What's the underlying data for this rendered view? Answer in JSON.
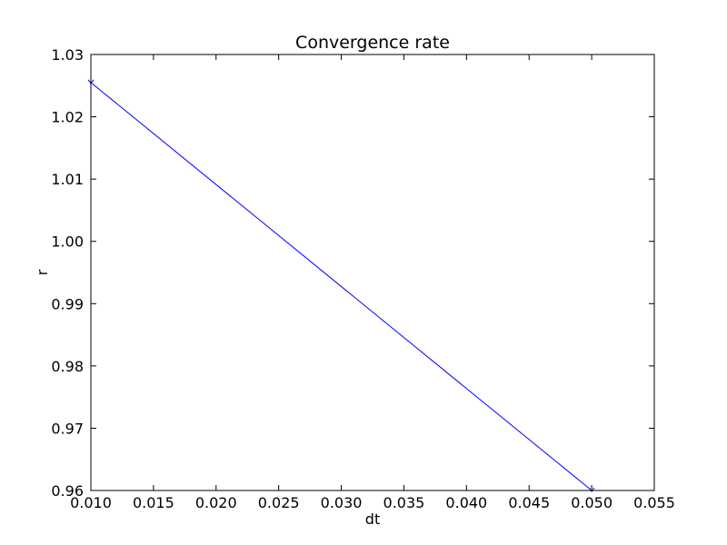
{
  "chart_data": {
    "type": "line",
    "title": "Convergence rate",
    "xlabel": "dt",
    "ylabel": "r",
    "xlim": [
      0.01,
      0.055
    ],
    "ylim": [
      0.96,
      1.03
    ],
    "xticks": [
      0.01,
      0.015,
      0.02,
      0.025,
      0.03,
      0.035,
      0.04,
      0.045,
      0.05,
      0.055
    ],
    "yticks": [
      0.96,
      0.97,
      0.98,
      0.99,
      1.0,
      1.01,
      1.02,
      1.03
    ],
    "xtick_labels": [
      "0.010",
      "0.015",
      "0.020",
      "0.025",
      "0.030",
      "0.035",
      "0.040",
      "0.045",
      "0.050",
      "0.055"
    ],
    "ytick_labels": [
      "0.96",
      "0.97",
      "0.98",
      "0.99",
      "1.00",
      "1.01",
      "1.02",
      "1.03"
    ],
    "grid": false,
    "series": [
      {
        "color": "#0000ff",
        "marker": "tri-down",
        "x": [
          0.01,
          0.05
        ],
        "y": [
          1.0255,
          0.96
        ]
      }
    ]
  }
}
